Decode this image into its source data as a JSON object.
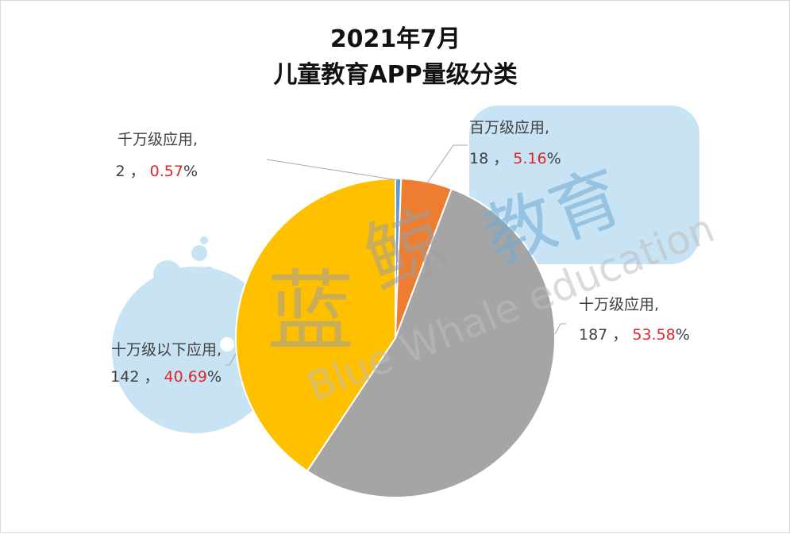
{
  "chart_data": {
    "type": "pie",
    "title": "2021年7月",
    "subtitle": "儿童教育APP量级分类",
    "slices": [
      {
        "name": "千万级应用",
        "value": 2,
        "percent": "0.57",
        "color": "#5b9bd5"
      },
      {
        "name": "百万级应用",
        "value": 18,
        "percent": "5.16",
        "color": "#ed7d31"
      },
      {
        "name": "十万级应用",
        "value": 187,
        "percent": "53.58",
        "color": "#a5a5a5"
      },
      {
        "name": "十万级以下应用",
        "value": 142,
        "percent": "40.69",
        "color": "#ffc000"
      }
    ],
    "label_separator": "，",
    "percent_sign": "%"
  },
  "watermark": {
    "brand_cn_1": "蓝",
    "brand_cn_2": "鲸",
    "brand_cn_3": "教育",
    "brand_en": "Blue Whale education",
    "logo_icon": "whale-icon",
    "colors": {
      "light_blue": "#c8e3f3",
      "gray": "#bdbdbd",
      "blue": "#7fb6dd"
    }
  }
}
